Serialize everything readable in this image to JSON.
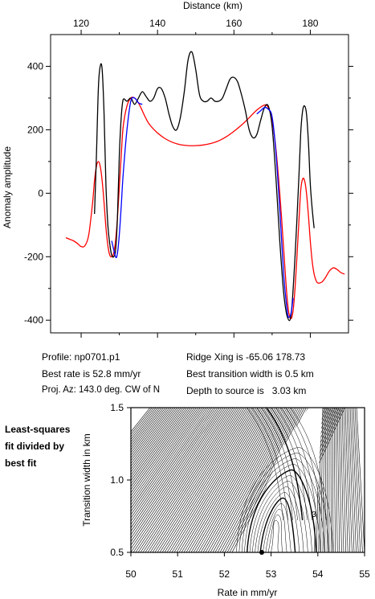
{
  "chart_data": [
    {
      "type": "line",
      "title": "",
      "xlabel": "Distance (km)",
      "ylabel": "Anomaly amplitude",
      "xlim": [
        112,
        190
      ],
      "ylim": [
        -440,
        500
      ],
      "x_ticks": [
        "120",
        "140",
        "160",
        "180"
      ],
      "y_ticks": [
        "400",
        "200",
        "0",
        "-200",
        "-400"
      ],
      "grid": false,
      "legend": "none",
      "series": [
        {
          "color": "#000000",
          "x": [
            123.5,
            124.0,
            124.5,
            125.0,
            125.5,
            126.0,
            126.5,
            127.0,
            127.5,
            128.0,
            128.5,
            129.0,
            129.5,
            130.0,
            130.5,
            131.0,
            132.0,
            133.0,
            134.0,
            135.0,
            136.0,
            137.0,
            138.0,
            139.0,
            140.0,
            141.0,
            142.0,
            143.0,
            144.0,
            145.0,
            146.0,
            147.0,
            148.0,
            149.0,
            150.0,
            151.0,
            152.0,
            153.0,
            154.0,
            155.0,
            156.0,
            157.0,
            158.0,
            159.0,
            160.0,
            161.0,
            162.0,
            163.0,
            164.0,
            165.0,
            166.0,
            167.0,
            168.0,
            169.0,
            170.0,
            171.0,
            172.0,
            173.0,
            174.0,
            175.0,
            176.0,
            177.0,
            177.5,
            178.0,
            178.5,
            179.0,
            179.5,
            180.0,
            180.5,
            181.0
          ],
          "y": [
            -65,
            120,
            330,
            400,
            390,
            250,
            20,
            -100,
            -160,
            -195,
            -200,
            -180,
            -80,
            120,
            240,
            295,
            290,
            300,
            280,
            300,
            320,
            305,
            290,
            300,
            330,
            330,
            300,
            250,
            210,
            200,
            240,
            320,
            420,
            445,
            390,
            310,
            290,
            290,
            300,
            290,
            290,
            300,
            330,
            360,
            365,
            350,
            310,
            260,
            200,
            175,
            185,
            230,
            270,
            275,
            210,
            50,
            -150,
            -310,
            -390,
            -380,
            -200,
            50,
            190,
            260,
            275,
            250,
            160,
            30,
            -50,
            -110
          ]
        },
        {
          "color": "#0000ff",
          "x": [
            128.0,
            129.0,
            129.5,
            130.0,
            130.5,
            131.0,
            132.0,
            133.0,
            134.0,
            135.0,
            136.0
          ],
          "y": [
            -150,
            -200,
            -190,
            -130,
            -40,
            60,
            200,
            290,
            300,
            285,
            280
          ]
        },
        {
          "color": "#0000ff",
          "x": [
            166.0,
            167.0,
            168.0,
            169.0,
            170.0,
            171.0,
            172.0,
            173.0,
            174.0,
            174.5,
            175.0,
            175.5
          ],
          "y": [
            250,
            260,
            270,
            265,
            240,
            130,
            -50,
            -250,
            -375,
            -390,
            -375,
            -330
          ]
        },
        {
          "color": "#ff0000",
          "x": [
            116.0,
            117.0,
            118.0,
            119.0,
            120.0,
            121.0,
            122.0,
            123.0,
            123.5,
            124.0,
            124.5,
            125.0,
            125.5,
            126.0,
            126.5,
            127.0,
            127.5,
            128.0,
            128.5,
            129.0,
            129.5,
            130.0,
            130.5,
            131.0,
            132.0,
            133.0,
            134.0,
            135.0,
            136.0,
            137.0,
            138.0,
            140.0,
            142.0,
            144.0,
            146.0,
            148.0,
            150.0,
            152.0,
            154.0,
            156.0,
            158.0,
            160.0,
            162.0,
            164.0,
            166.0,
            168.0,
            169.0,
            170.0,
            171.0,
            172.0,
            173.0,
            173.5,
            174.0,
            174.5,
            175.0,
            175.5,
            176.0,
            176.5,
            177.0,
            177.5,
            178.0,
            178.5,
            179.0,
            179.5,
            180.0,
            180.5,
            181.0,
            181.5,
            182.0,
            183.0,
            184.0,
            185.0,
            186.0,
            187.0,
            188.0,
            189.0
          ],
          "y": [
            -140,
            -145,
            -150,
            -158,
            -168,
            -165,
            -130,
            -30,
            40,
            85,
            100,
            85,
            40,
            -30,
            -110,
            -165,
            -195,
            -200,
            -190,
            -150,
            -80,
            20,
            120,
            210,
            275,
            300,
            300,
            285,
            260,
            235,
            215,
            190,
            172,
            160,
            153,
            150,
            150,
            152,
            157,
            165,
            178,
            195,
            215,
            238,
            262,
            278,
            270,
            230,
            140,
            0,
            -170,
            -260,
            -340,
            -385,
            -395,
            -370,
            -300,
            -200,
            -90,
            10,
            45,
            40,
            0,
            -70,
            -150,
            -215,
            -255,
            -275,
            -283,
            -280,
            -265,
            -245,
            -235,
            -240,
            -250,
            -255
          ]
        }
      ]
    },
    {
      "type": "contour",
      "title": "",
      "xlabel": "Rate in mm/yr",
      "ylabel": "Transition width in km",
      "xlim": [
        50,
        55
      ],
      "ylim": [
        0.5,
        1.5
      ],
      "x_ticks": [
        "50",
        "51",
        "52",
        "53",
        "54",
        "55"
      ],
      "y_ticks": [
        "0.5",
        "1.0",
        "1.5"
      ],
      "contour_label": "3",
      "best_fit_point": {
        "x": 52.8,
        "y": 0.5
      }
    }
  ],
  "info": {
    "profile": "Profile: np0701.p1",
    "best_rate": "Best rate is 52.8 mm/yr",
    "proj_az": "Proj. Az: 143.0 deg. CW of N",
    "ridge_xing": "Ridge Xing is -65.06 178.73",
    "best_width": "Best transition width is 0.5 km",
    "depth": "Depth to source is   3.03 km"
  },
  "side_label": [
    "Least-squares",
    "fit divided by",
    "best fit"
  ]
}
